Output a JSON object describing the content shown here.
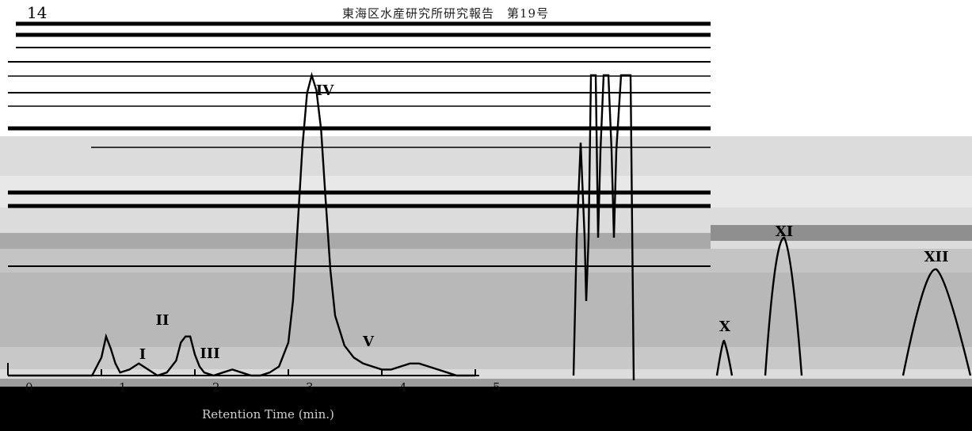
{
  "page": {
    "number": "14",
    "header": "東海区水産研究所研究報告　第19号",
    "colors": {
      "ink": "#000000",
      "gray_band_light": "#dcdcdc",
      "gray_band": "#b8b8b8",
      "gray_band_dark": "#8f8f8f",
      "black_band": "#000000"
    }
  },
  "chart_data": {
    "type": "line",
    "xlabel": "Retention Time (min.)",
    "ylabel": "",
    "xlim": [
      0,
      5
    ],
    "x_ticks": [
      "0",
      "1",
      "2",
      "3",
      "4",
      "5"
    ],
    "grid": false,
    "legend": "none",
    "peaks": [
      {
        "label": "I",
        "x": 1.55
      },
      {
        "label": "II",
        "x": 1.95
      },
      {
        "label": "III",
        "x": 2.4
      },
      {
        "label": "IV",
        "x": 3.35
      },
      {
        "label": "V",
        "x": 4.35
      },
      {
        "label": "X",
        "x": 8.3
      },
      {
        "label": "XI",
        "x": 9.0
      },
      {
        "label": "XII",
        "x": 10.5
      }
    ],
    "series": [
      {
        "x": [
          0.0,
          0.9,
          1.0,
          1.05,
          1.1,
          1.15,
          1.2,
          1.3,
          1.4,
          1.5,
          1.6,
          1.7,
          1.8,
          1.85,
          1.9,
          1.95,
          2.0,
          2.05,
          2.1,
          2.2,
          2.3,
          2.4,
          2.5,
          2.6,
          2.7,
          2.8,
          2.9,
          3.0,
          3.05,
          3.1,
          3.15,
          3.2,
          3.25,
          3.3,
          3.35,
          3.4,
          3.45,
          3.5,
          3.6,
          3.7,
          3.8,
          3.9,
          4.0,
          4.1,
          4.2,
          4.3,
          4.4,
          4.5,
          4.6,
          4.7,
          4.8,
          4.9,
          5.0
        ],
        "y": [
          0.0,
          0.0,
          0.06,
          0.13,
          0.09,
          0.04,
          0.01,
          0.02,
          0.04,
          0.02,
          0.0,
          0.01,
          0.05,
          0.11,
          0.13,
          0.13,
          0.07,
          0.03,
          0.01,
          0.0,
          0.01,
          0.02,
          0.01,
          0.0,
          0.0,
          0.01,
          0.03,
          0.11,
          0.25,
          0.5,
          0.76,
          0.94,
          1.0,
          0.95,
          0.82,
          0.58,
          0.35,
          0.2,
          0.1,
          0.06,
          0.04,
          0.03,
          0.02,
          0.02,
          0.03,
          0.04,
          0.04,
          0.03,
          0.02,
          0.01,
          0.0,
          0.0,
          0.0
        ]
      }
    ]
  }
}
